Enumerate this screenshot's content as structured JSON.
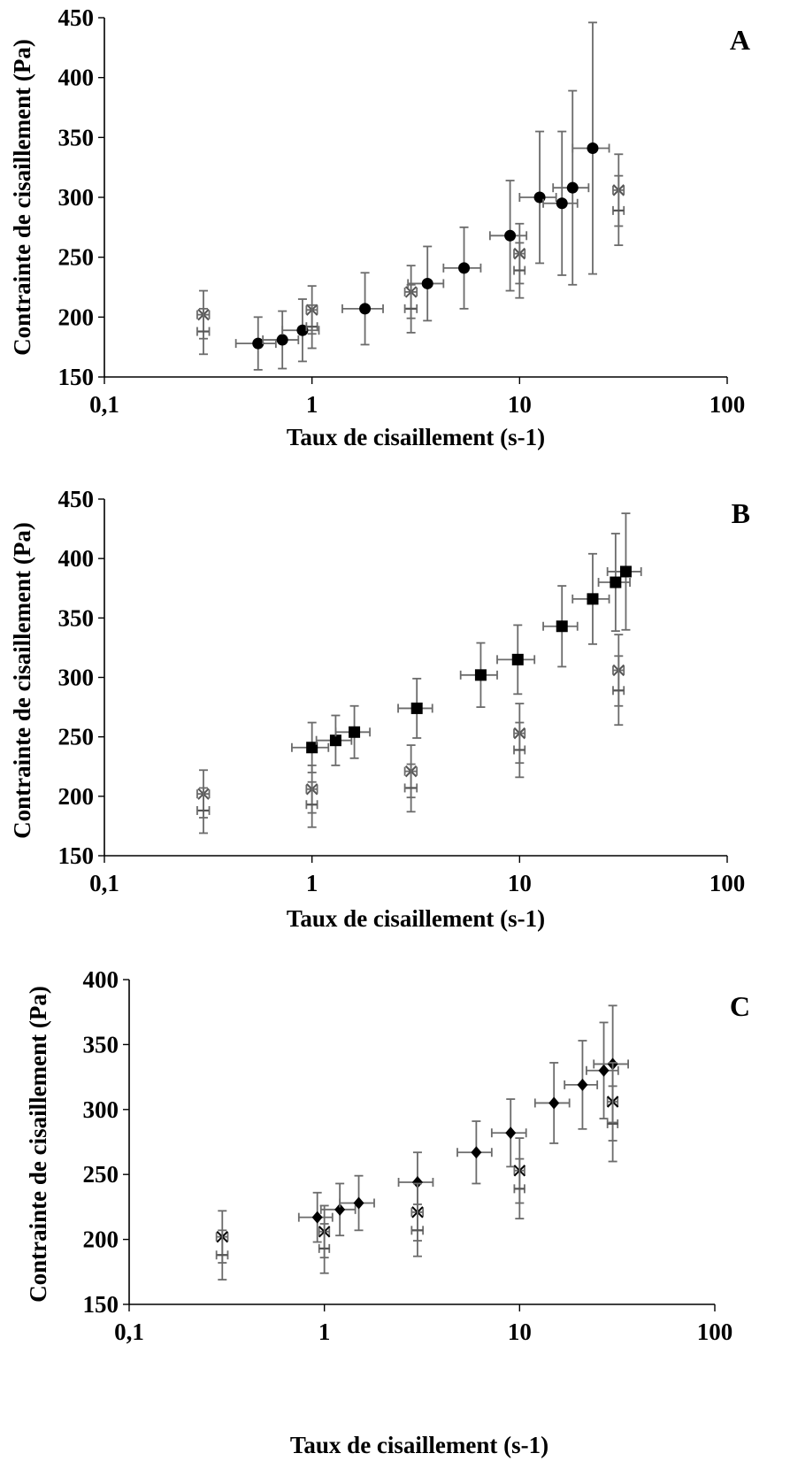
{
  "chart_data": [
    {
      "type": "scatter",
      "panel_label": "A",
      "xlabel": "Taux de cisaillement (s-1)",
      "ylabel": "Contrainte de cisaillement (Pa)",
      "xscale": "log",
      "xlim": [
        0.1,
        100
      ],
      "ylim": [
        150,
        450
      ],
      "xticks": [
        "0,1",
        "1",
        "10",
        "100"
      ],
      "yticks": [
        "150",
        "200",
        "250",
        "300",
        "350",
        "400",
        "450"
      ],
      "grid": false,
      "series": [
        {
          "marker": "circle",
          "color": "#000000",
          "points": [
            {
              "x": 0.55,
              "y": 178,
              "xerr": 0.12,
              "yerr": 22
            },
            {
              "x": 0.72,
              "y": 181,
              "xerr": 0.14,
              "yerr": 24
            },
            {
              "x": 0.9,
              "y": 189,
              "xerr": 0.18,
              "yerr": 26
            },
            {
              "x": 1.8,
              "y": 207,
              "xerr": 0.4,
              "yerr": 30
            },
            {
              "x": 3.6,
              "y": 228,
              "xerr": 0.7,
              "yerr": 31
            },
            {
              "x": 5.4,
              "y": 241,
              "xerr": 1.1,
              "yerr": 34
            },
            {
              "x": 9.0,
              "y": 268,
              "xerr": 1.8,
              "yerr": 46
            },
            {
              "x": 12.5,
              "y": 300,
              "xerr": 2.5,
              "yerr": 55
            },
            {
              "x": 16.0,
              "y": 295,
              "xerr": 3.0,
              "yerr": 60
            },
            {
              "x": 18.0,
              "y": 308,
              "xerr": 3.5,
              "yerr": 81
            },
            {
              "x": 22.5,
              "y": 341,
              "xerr": 4.5,
              "yerr": 105
            }
          ]
        },
        {
          "marker": "cross",
          "color": "#555555",
          "points": [
            {
              "x": 0.3,
              "y": 202,
              "xerr": 0.02,
              "yerr": 20
            },
            {
              "x": 1.0,
              "y": 206,
              "xerr": 0.06,
              "yerr": 20
            },
            {
              "x": 3.0,
              "y": 221,
              "xerr": 0.2,
              "yerr": 22
            },
            {
              "x": 10.0,
              "y": 253,
              "xerr": 0.6,
              "yerr": 25
            },
            {
              "x": 30.0,
              "y": 306,
              "xerr": 1.8,
              "yerr": 30
            }
          ]
        },
        {
          "marker": "dash",
          "color": "#555555",
          "points": [
            {
              "x": 0.3,
              "y": 188,
              "xerr": 0.02,
              "yerr": 19
            },
            {
              "x": 1.0,
              "y": 192,
              "xerr": 0.06,
              "yerr": 18
            },
            {
              "x": 3.0,
              "y": 207,
              "xerr": 0.2,
              "yerr": 20
            },
            {
              "x": 10.0,
              "y": 239,
              "xerr": 0.6,
              "yerr": 23
            },
            {
              "x": 30.0,
              "y": 289,
              "xerr": 1.8,
              "yerr": 29
            }
          ]
        }
      ]
    },
    {
      "type": "scatter",
      "panel_label": "B",
      "xlabel": "Taux de cisaillement (s-1)",
      "ylabel": "Contrainte de cisaillement (Pa)",
      "xscale": "log",
      "xlim": [
        0.1,
        100
      ],
      "ylim": [
        150,
        450
      ],
      "xticks": [
        "0,1",
        "1",
        "10",
        "100"
      ],
      "yticks": [
        "150",
        "200",
        "250",
        "300",
        "350",
        "400",
        "450"
      ],
      "grid": false,
      "series": [
        {
          "marker": "square",
          "color": "#000000",
          "points": [
            {
              "x": 1.0,
              "y": 241,
              "xerr": 0.2,
              "yerr": 21
            },
            {
              "x": 1.3,
              "y": 247,
              "xerr": 0.25,
              "yerr": 21
            },
            {
              "x": 1.6,
              "y": 254,
              "xerr": 0.3,
              "yerr": 22
            },
            {
              "x": 3.2,
              "y": 274,
              "xerr": 0.6,
              "yerr": 25
            },
            {
              "x": 6.5,
              "y": 302,
              "xerr": 1.3,
              "yerr": 27
            },
            {
              "x": 9.8,
              "y": 315,
              "xerr": 2.0,
              "yerr": 29
            },
            {
              "x": 16.0,
              "y": 343,
              "xerr": 3.0,
              "yerr": 34
            },
            {
              "x": 22.5,
              "y": 366,
              "xerr": 4.5,
              "yerr": 38
            },
            {
              "x": 29.0,
              "y": 380,
              "xerr": 5.0,
              "yerr": 41
            },
            {
              "x": 32.5,
              "y": 389,
              "xerr": 6.0,
              "yerr": 49
            }
          ]
        },
        {
          "marker": "cross",
          "color": "#555555",
          "points": [
            {
              "x": 0.3,
              "y": 202,
              "xerr": 0.02,
              "yerr": 20
            },
            {
              "x": 1.0,
              "y": 206,
              "xerr": 0.06,
              "yerr": 20
            },
            {
              "x": 3.0,
              "y": 221,
              "xerr": 0.2,
              "yerr": 22
            },
            {
              "x": 10.0,
              "y": 253,
              "xerr": 0.6,
              "yerr": 25
            },
            {
              "x": 30.0,
              "y": 306,
              "xerr": 1.8,
              "yerr": 30
            }
          ]
        },
        {
          "marker": "dash",
          "color": "#555555",
          "points": [
            {
              "x": 0.3,
              "y": 188,
              "xerr": 0.02,
              "yerr": 19
            },
            {
              "x": 1.0,
              "y": 193,
              "xerr": 0.06,
              "yerr": 19
            },
            {
              "x": 3.0,
              "y": 207,
              "xerr": 0.2,
              "yerr": 20
            },
            {
              "x": 10.0,
              "y": 239,
              "xerr": 0.6,
              "yerr": 23
            },
            {
              "x": 30.0,
              "y": 289,
              "xerr": 1.8,
              "yerr": 29
            }
          ]
        }
      ]
    },
    {
      "type": "scatter",
      "panel_label": "C",
      "xlabel": "Taux de cisaillement (s-1)",
      "ylabel": "Contrainte de cisaillement (Pa)",
      "xscale": "log",
      "xlim": [
        0.1,
        100
      ],
      "ylim": [
        150,
        400
      ],
      "xticks": [
        "0,1",
        "1",
        "10",
        "100"
      ],
      "yticks": [
        "150",
        "200",
        "250",
        "300",
        "350",
        "400"
      ],
      "grid": false,
      "series": [
        {
          "marker": "diamond",
          "color": "#000000",
          "points": [
            {
              "x": 0.92,
              "y": 217,
              "xerr": 0.18,
              "yerr": 19
            },
            {
              "x": 1.2,
              "y": 223,
              "xerr": 0.24,
              "yerr": 20
            },
            {
              "x": 1.5,
              "y": 228,
              "xerr": 0.3,
              "yerr": 21
            },
            {
              "x": 3.0,
              "y": 244,
              "xerr": 0.6,
              "yerr": 23
            },
            {
              "x": 6.0,
              "y": 267,
              "xerr": 1.2,
              "yerr": 24
            },
            {
              "x": 9.0,
              "y": 282,
              "xerr": 1.8,
              "yerr": 26
            },
            {
              "x": 15.0,
              "y": 305,
              "xerr": 3.0,
              "yerr": 31
            },
            {
              "x": 21.0,
              "y": 319,
              "xerr": 4.0,
              "yerr": 34
            },
            {
              "x": 27.0,
              "y": 330,
              "xerr": 5.0,
              "yerr": 37
            },
            {
              "x": 30.0,
              "y": 335,
              "xerr": 6.0,
              "yerr": 45
            }
          ]
        },
        {
          "marker": "cross",
          "color": "#000000",
          "points": [
            {
              "x": 0.3,
              "y": 202,
              "xerr": 0.02,
              "yerr": 20
            },
            {
              "x": 1.0,
              "y": 206,
              "xerr": 0.06,
              "yerr": 20
            },
            {
              "x": 3.0,
              "y": 221,
              "xerr": 0.2,
              "yerr": 22
            },
            {
              "x": 10.0,
              "y": 253,
              "xerr": 0.6,
              "yerr": 25
            },
            {
              "x": 30.0,
              "y": 306,
              "xerr": 1.8,
              "yerr": 30
            }
          ]
        },
        {
          "marker": "dash",
          "color": "#555555",
          "points": [
            {
              "x": 0.3,
              "y": 188,
              "xerr": 0.02,
              "yerr": 19
            },
            {
              "x": 1.0,
              "y": 193,
              "xerr": 0.06,
              "yerr": 19
            },
            {
              "x": 3.0,
              "y": 207,
              "xerr": 0.2,
              "yerr": 20
            },
            {
              "x": 10.0,
              "y": 239,
              "xerr": 0.6,
              "yerr": 23
            },
            {
              "x": 30.0,
              "y": 289,
              "xerr": 1.8,
              "yerr": 29
            }
          ]
        }
      ]
    }
  ]
}
